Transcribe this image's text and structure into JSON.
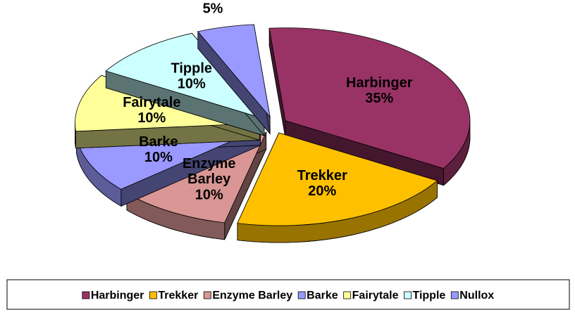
{
  "chart_data": {
    "type": "pie",
    "categories": [
      "Harbinger",
      "Trekker",
      "Enzyme Barley",
      "Barke",
      "Fairytale",
      "Tipple",
      "Nullox"
    ],
    "values": [
      35,
      20,
      10,
      10,
      10,
      10,
      5
    ],
    "value_labels": [
      "35%",
      "20%",
      "10%",
      "10%",
      "10%",
      "10%",
      "5%"
    ],
    "colors": [
      "#993366",
      "#ffc000",
      "#d99694",
      "#9999ff",
      "#ffff99",
      "#ccffff",
      "#9999ff"
    ],
    "legend": "bottom"
  }
}
